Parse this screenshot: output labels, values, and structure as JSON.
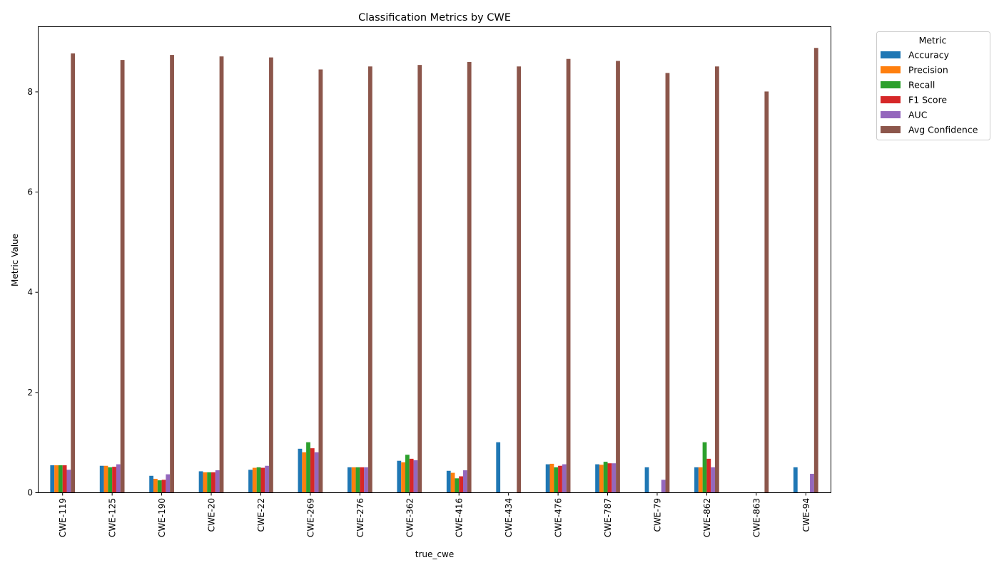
{
  "chart_data": {
    "type": "bar",
    "title": "Classification Metrics by CWE",
    "xlabel": "true_cwe",
    "ylabel": "Metric Value",
    "ylim": [
      0,
      9.3
    ],
    "yticks": [
      0,
      2,
      4,
      6,
      8
    ],
    "grid": false,
    "legend": {
      "title": "Metric",
      "placement": "outside-top-right"
    },
    "categories": [
      "CWE-119",
      "CWE-125",
      "CWE-190",
      "CWE-20",
      "CWE-22",
      "CWE-269",
      "CWE-276",
      "CWE-362",
      "CWE-416",
      "CWE-434",
      "CWE-476",
      "CWE-787",
      "CWE-79",
      "CWE-862",
      "CWE-863",
      "CWE-94"
    ],
    "series": [
      {
        "name": "Accuracy",
        "color": "#1f77b4",
        "values": [
          0.54,
          0.53,
          0.33,
          0.42,
          0.45,
          0.87,
          0.5,
          0.63,
          0.43,
          1.0,
          0.56,
          0.56,
          0.5,
          0.5,
          0.0,
          0.5
        ]
      },
      {
        "name": "Precision",
        "color": "#ff7f0e",
        "values": [
          0.54,
          0.53,
          0.27,
          0.4,
          0.49,
          0.8,
          0.5,
          0.6,
          0.39,
          0.0,
          0.57,
          0.55,
          0.0,
          0.5,
          0.0,
          0.0
        ]
      },
      {
        "name": "Recall",
        "color": "#2ca02c",
        "values": [
          0.54,
          0.5,
          0.24,
          0.4,
          0.5,
          1.0,
          0.5,
          0.75,
          0.28,
          0.0,
          0.5,
          0.61,
          0.0,
          1.0,
          0.0,
          0.0
        ]
      },
      {
        "name": "F1 Score",
        "color": "#d62728",
        "values": [
          0.54,
          0.51,
          0.25,
          0.4,
          0.49,
          0.88,
          0.5,
          0.67,
          0.32,
          0.0,
          0.53,
          0.58,
          0.0,
          0.67,
          0.0,
          0.0
        ]
      },
      {
        "name": "AUC",
        "color": "#9467bd",
        "values": [
          0.45,
          0.56,
          0.36,
          0.44,
          0.53,
          0.8,
          0.5,
          0.64,
          0.44,
          0.0,
          0.56,
          0.58,
          0.25,
          0.5,
          0.0,
          0.37
        ]
      },
      {
        "name": "Avg Confidence",
        "color": "#8c564b",
        "values": [
          8.76,
          8.63,
          8.73,
          8.7,
          8.68,
          8.44,
          8.5,
          8.53,
          8.59,
          8.5,
          8.65,
          8.61,
          8.37,
          8.5,
          8.0,
          8.87
        ]
      }
    ]
  }
}
